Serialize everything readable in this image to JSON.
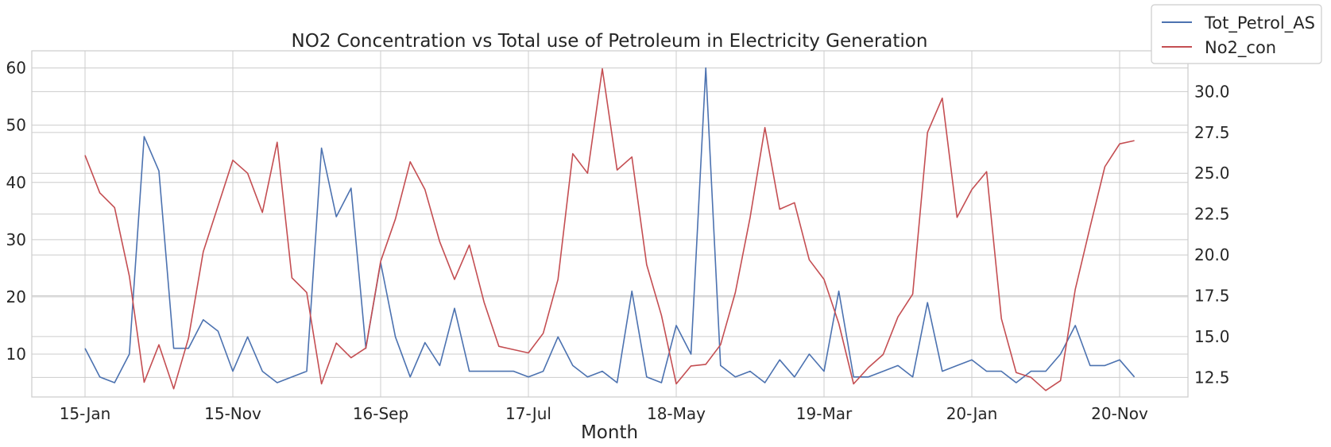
{
  "chart_data": {
    "type": "line",
    "title": "NO2 Concentration vs Total use of Petroleum in Electricity Generation",
    "xlabel": "Month",
    "x_tick_labels": [
      "15-Jan",
      "15-Nov",
      "16-Sep",
      "17-Jul",
      "18-May",
      "19-Mar",
      "20-Jan",
      "20-Nov"
    ],
    "x_tick_months": [
      0,
      10,
      20,
      30,
      40,
      50,
      60,
      70
    ],
    "left_axis": {
      "ylim": [
        2.5,
        63
      ],
      "ticks": [
        10,
        20,
        30,
        40,
        50,
        60
      ]
    },
    "right_axis": {
      "ylim": [
        11.3,
        32.5
      ],
      "ticks": [
        12.5,
        15.0,
        17.5,
        20.0,
        22.5,
        25.0,
        27.5,
        30.0
      ]
    },
    "grid": true,
    "legend_position": "top-right",
    "series": [
      {
        "name": "Tot_Petrol_AS",
        "color": "#4c72b0",
        "axis": "left",
        "values": [
          11,
          6,
          5,
          10,
          48,
          42,
          11,
          11,
          16,
          14,
          7,
          13,
          7,
          5,
          6,
          7,
          46,
          34,
          39,
          11,
          26,
          13,
          6,
          12,
          8,
          18,
          7,
          7,
          7,
          7,
          6,
          7,
          13,
          8,
          6,
          7,
          5,
          21,
          6,
          5,
          15,
          10,
          60,
          8,
          6,
          7,
          5,
          9,
          6,
          10,
          7,
          21,
          6,
          6,
          7,
          8,
          6,
          19,
          7,
          8,
          9,
          7,
          7,
          5,
          7,
          7,
          10,
          15,
          8,
          8,
          9,
          6
        ]
      },
      {
        "name": "No2_con",
        "color": "#c44e52",
        "axis": "right",
        "values": [
          26.1,
          23.8,
          22.9,
          18.7,
          12.2,
          14.5,
          11.8,
          14.9,
          20.2,
          23.0,
          25.8,
          25.0,
          22.6,
          26.9,
          18.6,
          17.7,
          12.1,
          14.6,
          13.7,
          14.3,
          19.6,
          22.2,
          25.7,
          24.0,
          20.8,
          18.5,
          20.6,
          17.1,
          14.4,
          14.2,
          14.0,
          15.2,
          18.5,
          26.2,
          25.0,
          31.4,
          25.2,
          26.0,
          19.4,
          16.3,
          12.1,
          13.2,
          13.3,
          14.5,
          17.7,
          22.3,
          27.8,
          22.8,
          23.2,
          19.7,
          18.5,
          15.8,
          12.1,
          13.1,
          13.9,
          16.2,
          17.6,
          27.5,
          29.6,
          22.3,
          24.0,
          25.1,
          16.1,
          12.8,
          12.5,
          11.7,
          12.3,
          17.9,
          21.7,
          25.4,
          26.8,
          27.0
        ]
      }
    ]
  }
}
